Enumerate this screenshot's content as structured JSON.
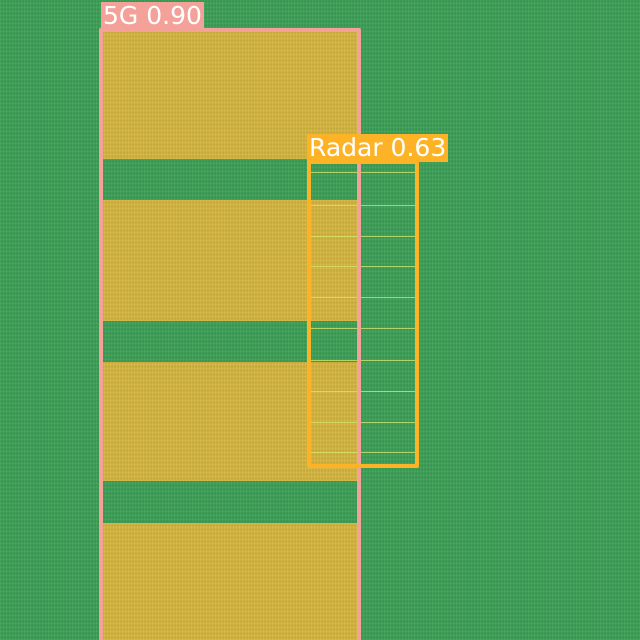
{
  "detections": [
    {
      "label": "5G 0.90",
      "color": "#f4a19a"
    },
    {
      "label": "Radar 0.63",
      "color": "#fdb325"
    }
  ]
}
